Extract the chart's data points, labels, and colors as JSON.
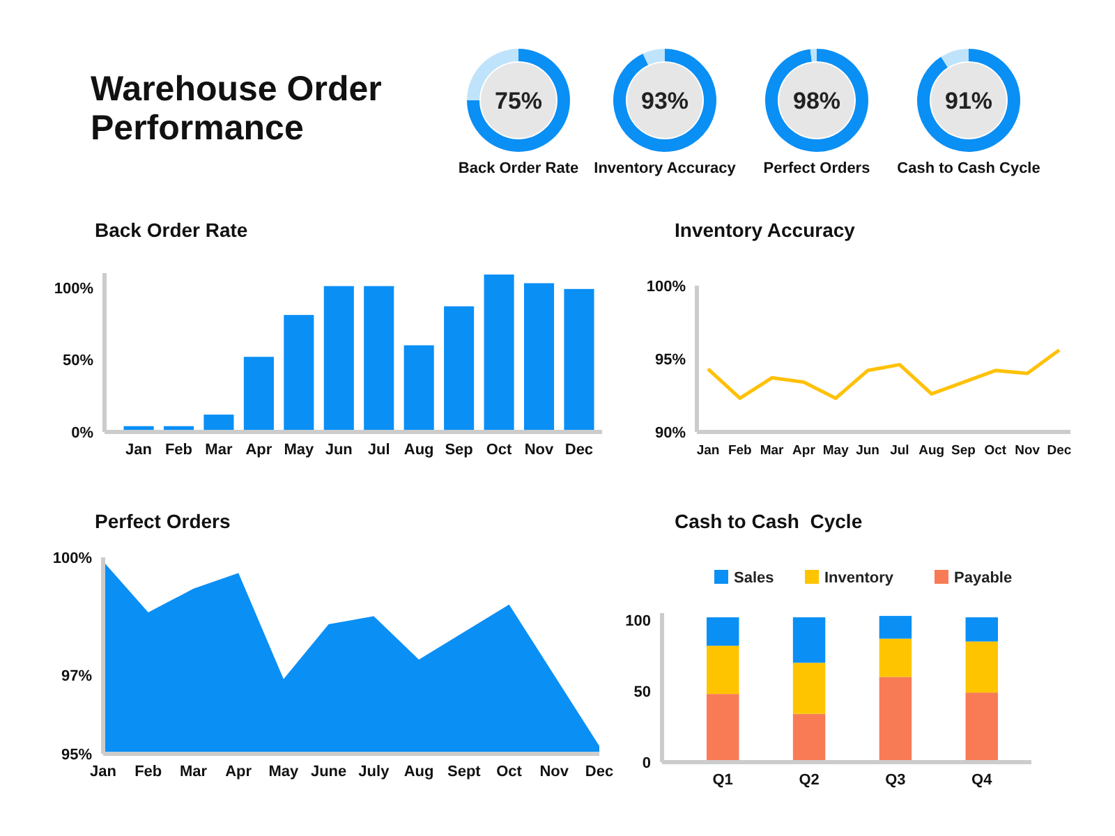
{
  "chart_data": [
    {
      "type": "other",
      "title": "Warehouse Order Performance"
    },
    {
      "type": "donut",
      "title": "Back Order Rate",
      "categories": [
        null,
        null
      ],
      "values": [
        75,
        25
      ],
      "colors": [
        "#0a8ff5",
        "#bfe3fa"
      ],
      "value_labels": [
        "75%",
        null
      ]
    },
    {
      "type": "donut",
      "title": "Inventory Accuracy",
      "categories": [
        null,
        null
      ],
      "values": [
        93,
        7
      ],
      "colors": [
        "#0a8ff5",
        "#bfe3fa"
      ],
      "value_labels": [
        "93%",
        null
      ]
    },
    {
      "type": "donut",
      "title": "Perfect Orders",
      "categories": [
        null,
        null
      ],
      "values": [
        98,
        2
      ],
      "colors": [
        "#0a8ff5",
        "#bfe3fa"
      ],
      "value_labels": [
        "98%",
        null
      ]
    },
    {
      "type": "donut",
      "title": "Cash to Cash Cycle",
      "categories": [
        null,
        null
      ],
      "values": [
        91,
        9
      ],
      "colors": [
        "#0a8ff5",
        "#bfe3fa"
      ],
      "value_labels": [
        "91%",
        null
      ]
    },
    {
      "type": "bar",
      "title": "Back Order Rate",
      "categories": [
        "Jan",
        "Feb",
        "Mar",
        "Apr",
        "May",
        "Jun",
        "Jul",
        "Aug",
        "Sep",
        "Oct",
        "Nov",
        "Dec"
      ],
      "values": [
        4,
        4,
        12,
        52,
        81,
        101,
        101,
        60,
        87,
        109,
        103,
        99
      ],
      "color": "#0a8ff5",
      "ylim": [
        0,
        110
      ],
      "yticks": [
        {
          "value": 0,
          "label": "0%"
        },
        {
          "value": 50,
          "label": "50%"
        },
        {
          "value": 100,
          "label": "100%"
        }
      ],
      "grid": false
    },
    {
      "type": "line",
      "title": "Inventory Accuracy",
      "categories": [
        "Jan",
        "Feb",
        "Mar",
        "Apr",
        "May",
        "Jun",
        "Jul",
        "Aug",
        "Sep",
        "Oct",
        "Nov",
        "Dec"
      ],
      "values": [
        94.3,
        92.3,
        93.7,
        93.4,
        92.3,
        94.2,
        94.6,
        92.6,
        93.4,
        94.2,
        94.0,
        95.6
      ],
      "color": "#ffc107",
      "ylim": [
        90,
        100
      ],
      "yticks": [
        {
          "value": 90,
          "label": "90%"
        },
        {
          "value": 95,
          "label": "95%"
        },
        {
          "value": 100,
          "label": "100%"
        }
      ],
      "grid": false,
      "marker": "none"
    },
    {
      "type": "area",
      "title": "Perfect Orders",
      "categories": [
        "Jan",
        "Feb",
        "Mar",
        "Apr",
        "May",
        "June",
        "July",
        "Aug",
        "Sept",
        "Oct",
        "Nov",
        "Dec"
      ],
      "values": [
        99.9,
        98.6,
        99.2,
        99.6,
        96.9,
        98.3,
        98.5,
        97.4,
        98.1,
        98.8,
        97.0,
        95.2
      ],
      "color": "#0a8ff5",
      "ylim": [
        95,
        100
      ],
      "yticks": [
        {
          "value": 95,
          "label": "95%"
        },
        {
          "value": 97,
          "label": "97%"
        },
        {
          "value": 100,
          "label": "100%"
        }
      ],
      "grid": false
    },
    {
      "type": "bar",
      "title": "Cash to Cash  Cycle",
      "categories": [
        "Q1",
        "Q2",
        "Q3",
        "Q4"
      ],
      "stacked": true,
      "legend": "top",
      "ylim": [
        0,
        105
      ],
      "yticks": [
        0,
        50,
        100
      ],
      "grid": false,
      "series": [
        {
          "name": "Payable",
          "color": "#f97b56",
          "values": [
            48,
            34,
            60,
            49
          ]
        },
        {
          "name": "Inventory",
          "color": "#ffc400",
          "values": [
            34,
            36,
            27,
            36
          ]
        },
        {
          "name": "Sales",
          "color": "#0a8ff5",
          "values": [
            20,
            32,
            16,
            17
          ]
        }
      ]
    }
  ]
}
